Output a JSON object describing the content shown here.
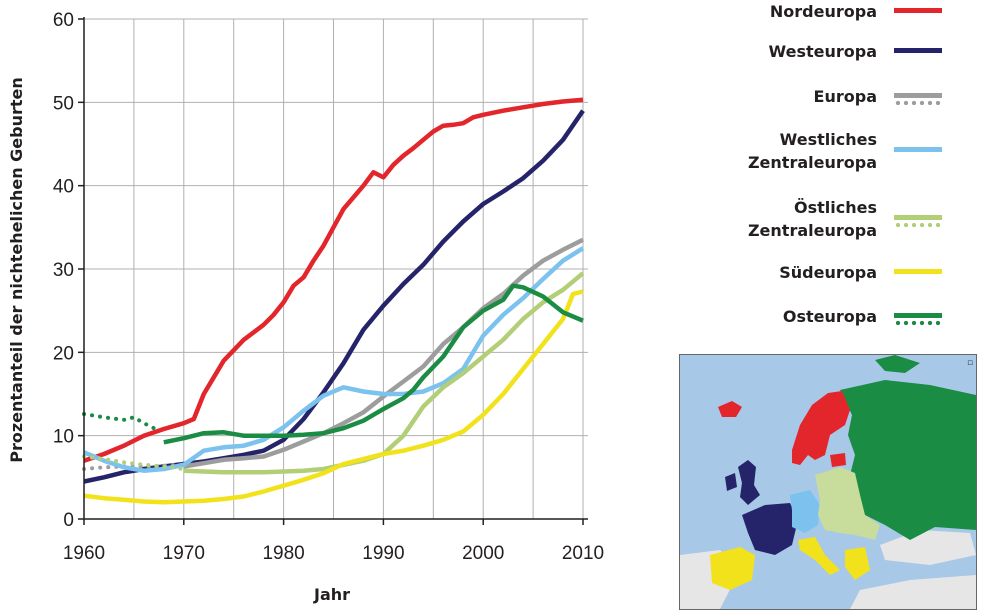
{
  "chart_data": {
    "type": "line",
    "xlabel": "Jahr",
    "ylabel": "Prozentanteil der nichtehelichen Geburten",
    "xlim": [
      1960,
      2010.5
    ],
    "ylim": [
      0,
      60
    ],
    "xticks": [
      1960,
      1970,
      1980,
      1990,
      2000,
      2010
    ],
    "yticks": [
      0,
      10,
      20,
      30,
      40,
      50,
      60
    ],
    "grid": true,
    "legend_position": "right",
    "series": [
      {
        "name": "Nordeuropa",
        "color": "#e3262b",
        "style": "solid",
        "x": [
          1960,
          1962,
          1964,
          1966,
          1968,
          1970,
          1971,
          1972,
          1974,
          1976,
          1978,
          1979,
          1980,
          1981,
          1982,
          1983,
          1984,
          1985,
          1986,
          1988,
          1989,
          1990,
          1991,
          1992,
          1993,
          1994,
          1995,
          1996,
          1997,
          1998,
          1999,
          2000,
          2002,
          2004,
          2006,
          2008,
          2010
        ],
        "y": [
          7,
          7.8,
          8.8,
          10,
          10.8,
          11.5,
          12,
          15,
          19,
          21.5,
          23.3,
          24.5,
          26,
          28,
          29,
          31,
          32.8,
          35,
          37.2,
          40,
          41.6,
          41,
          42.5,
          43.6,
          44.5,
          45.5,
          46.5,
          47.2,
          47.3,
          47.5,
          48.2,
          48.5,
          49,
          49.4,
          49.8,
          50.1,
          50.3
        ]
      },
      {
        "name": "Westeuropa",
        "color": "#25246b",
        "style": "solid",
        "x": [
          1960,
          1962,
          1964,
          1966,
          1968,
          1970,
          1972,
          1974,
          1976,
          1978,
          1980,
          1982,
          1984,
          1986,
          1988,
          1990,
          1992,
          1994,
          1996,
          1998,
          2000,
          2002,
          2004,
          2006,
          2008,
          2010
        ],
        "y": [
          4.5,
          5,
          5.6,
          6,
          6.3,
          6.6,
          6.9,
          7.3,
          7.7,
          8.2,
          9.5,
          12,
          15.2,
          18.7,
          22.7,
          25.6,
          28.2,
          30.5,
          33.3,
          35.7,
          37.8,
          39.3,
          40.9,
          43,
          45.5,
          49
        ]
      },
      {
        "name": "Europa",
        "color": "#9d9d9d",
        "style": "solid",
        "x": [
          1970,
          1972,
          1974,
          1976,
          1978,
          1980,
          1982,
          1984,
          1986,
          1988,
          1990,
          1992,
          1994,
          1996,
          1998,
          2000,
          2002,
          2004,
          2006,
          2008,
          2010
        ],
        "y": [
          6.3,
          6.7,
          7.1,
          7.3,
          7.5,
          8.3,
          9.3,
          10.3,
          11.5,
          12.8,
          14.7,
          16.5,
          18.3,
          21,
          23,
          25.3,
          27,
          29.2,
          31,
          32.3,
          33.5
        ]
      },
      {
        "name": "Europa",
        "color": "#9d9d9d",
        "style": "dotted",
        "x": [
          1960,
          1962,
          1964,
          1966,
          1968,
          1970
        ],
        "y": [
          6,
          6.2,
          6.3,
          6.3,
          6.4,
          6.5
        ]
      },
      {
        "name": "Westliches Zentraleuropa",
        "color": "#7cc2ee",
        "style": "solid",
        "x": [
          1960,
          1962,
          1964,
          1966,
          1968,
          1970,
          1972,
          1974,
          1976,
          1978,
          1980,
          1982,
          1984,
          1986,
          1988,
          1990,
          1992,
          1994,
          1996,
          1998,
          2000,
          2002,
          2004,
          2006,
          2008,
          2010
        ],
        "y": [
          8,
          7,
          6.2,
          5.8,
          6,
          6.5,
          8.2,
          8.6,
          8.8,
          9.5,
          11,
          13,
          14.8,
          15.8,
          15.3,
          15,
          15,
          15.3,
          16.3,
          18,
          22,
          24.5,
          26.5,
          28.8,
          31,
          32.5
        ]
      },
      {
        "name": "Östliches Zentraleuropa",
        "color": "#b2cf78",
        "style": "solid",
        "x": [
          1970,
          1972,
          1974,
          1976,
          1978,
          1980,
          1982,
          1984,
          1986,
          1988,
          1990,
          1992,
          1994,
          1996,
          1998,
          2000,
          2002,
          2004,
          2006,
          2008,
          2010
        ],
        "y": [
          5.8,
          5.7,
          5.6,
          5.6,
          5.6,
          5.7,
          5.8,
          6,
          6.5,
          7,
          7.8,
          10,
          13.5,
          15.8,
          17.5,
          19.5,
          21.5,
          24,
          26,
          27.5,
          29.5
        ]
      },
      {
        "name": "Östliches Zentraleuropa",
        "color": "#b2cf78",
        "style": "dotted",
        "x": [
          1960,
          1962,
          1964,
          1966,
          1968,
          1970
        ],
        "y": [
          7.5,
          7.2,
          6.8,
          6.5,
          6.3,
          6
        ]
      },
      {
        "name": "Südeuropa",
        "color": "#f2e21b",
        "style": "solid",
        "x": [
          1960,
          1962,
          1964,
          1966,
          1968,
          1970,
          1972,
          1974,
          1976,
          1978,
          1980,
          1982,
          1984,
          1986,
          1988,
          1990,
          1992,
          1994,
          1996,
          1998,
          2000,
          2002,
          2004,
          2006,
          2008,
          2009,
          2010
        ],
        "y": [
          2.8,
          2.5,
          2.3,
          2.1,
          2,
          2.1,
          2.2,
          2.4,
          2.7,
          3.3,
          4,
          4.7,
          5.5,
          6.6,
          7.2,
          7.8,
          8.2,
          8.8,
          9.5,
          10.5,
          12.5,
          15,
          18,
          21,
          24,
          27,
          27.3
        ]
      },
      {
        "name": "Osteuropa",
        "color": "#1b8c43",
        "style": "solid",
        "x": [
          1968,
          1970,
          1971,
          1972,
          1974,
          1976,
          1978,
          1980,
          1982,
          1984,
          1986,
          1988,
          1990,
          1992,
          1993,
          1994,
          1996,
          1998,
          2000,
          2002,
          2003,
          2004,
          2006,
          2008,
          2010
        ],
        "y": [
          9.2,
          9.7,
          10,
          10.3,
          10.4,
          10,
          10,
          10,
          10.1,
          10.3,
          10.9,
          11.8,
          13.2,
          14.5,
          15.5,
          17,
          19.5,
          23,
          25,
          26.3,
          28,
          27.8,
          26.7,
          24.8,
          23.8
        ]
      },
      {
        "name": "Osteuropa",
        "color": "#1b8c43",
        "style": "dotted",
        "x": [
          1960,
          1962,
          1964,
          1965,
          1966,
          1967
        ],
        "y": [
          12.6,
          12.2,
          11.9,
          12.2,
          11.5,
          10.9
        ]
      }
    ]
  },
  "legend": [
    {
      "lines": [
        "Nordeuropa"
      ],
      "color": "#e3262b",
      "dotted": false
    },
    {
      "lines": [
        "Westeuropa"
      ],
      "color": "#25246b",
      "dotted": false
    },
    {
      "lines": [
        "Europa"
      ],
      "color": "#9d9d9d",
      "dotted": true
    },
    {
      "lines": [
        "Westliches",
        "Zentraleuropa"
      ],
      "color": "#7cc2ee",
      "dotted": false
    },
    {
      "lines": [
        "Östliches",
        "Zentraleuropa"
      ],
      "color": "#b2cf78",
      "dotted": true
    },
    {
      "lines": [
        "Südeuropa"
      ],
      "color": "#f2e21b",
      "dotted": false
    },
    {
      "lines": [
        "Osteuropa"
      ],
      "color": "#1b8c43",
      "dotted": true
    }
  ],
  "map_colors": {
    "sea": "#a8c8e8",
    "land_other": "#e6e6e6",
    "nord": "#e3262b",
    "west": "#25246b",
    "west_central": "#7cc2ee",
    "east_central": "#c8dd9c",
    "south": "#f2e21b",
    "east": "#1b8c43"
  }
}
